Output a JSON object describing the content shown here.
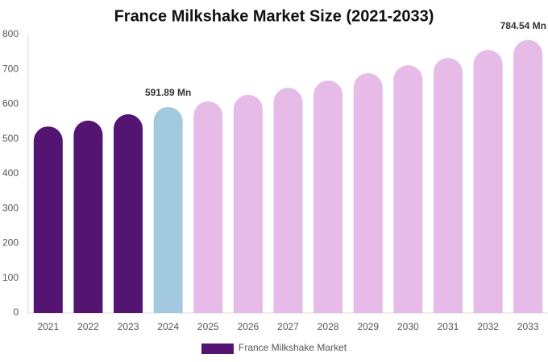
{
  "chart_data": {
    "type": "bar",
    "title": "France Milkshake Market Size (2021-2033)",
    "categories": [
      "2021",
      "2022",
      "2023",
      "2024",
      "2025",
      "2026",
      "2027",
      "2028",
      "2029",
      "2030",
      "2031",
      "2032",
      "2033"
    ],
    "series": [
      {
        "name": "France Milkshake Market",
        "color": "#541472",
        "values": [
          536,
          553,
          571,
          591.89,
          608,
          627,
          647,
          668,
          689,
          712,
          733,
          756,
          784.54
        ],
        "colors": [
          "#541472",
          "#541472",
          "#541472",
          "#a3c9df",
          "#e6bbe8",
          "#e6bbe8",
          "#e6bbe8",
          "#e6bbe8",
          "#e6bbe8",
          "#e6bbe8",
          "#e6bbe8",
          "#e6bbe8",
          "#e6bbe8"
        ],
        "value_labels": [
          null,
          null,
          null,
          "591.89 Mn",
          null,
          null,
          null,
          null,
          null,
          null,
          null,
          null,
          "784.54 Mn"
        ]
      }
    ],
    "ylim": [
      0,
      800
    ],
    "yticks": [
      0,
      100,
      200,
      300,
      400,
      500,
      600,
      700,
      800
    ],
    "grid": false,
    "legend": "bottom"
  }
}
